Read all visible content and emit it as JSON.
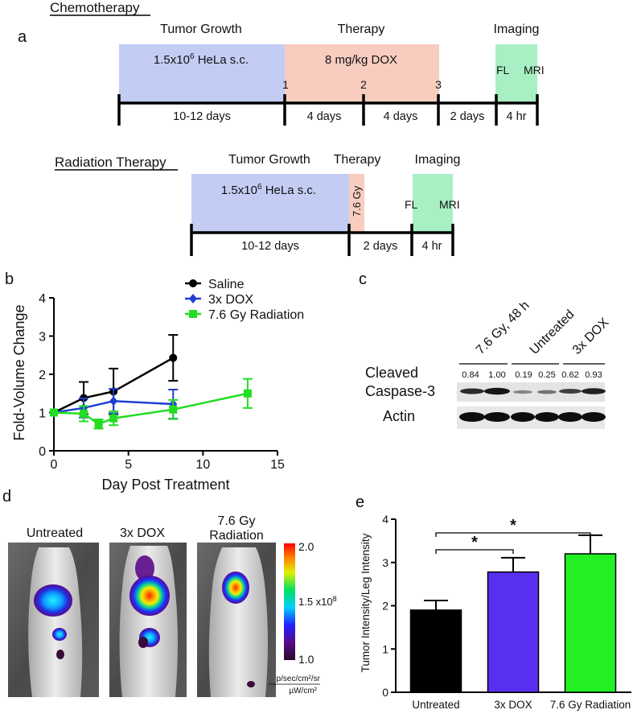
{
  "panel_labels": {
    "a": "a",
    "b": "b",
    "c": "c",
    "d": "d",
    "e": "e"
  },
  "timeline_chemo": {
    "title": "Chemotherapy",
    "phases": {
      "growth": "Tumor Growth",
      "therapy": "Therapy",
      "imaging": "Imaging"
    },
    "cells": "1.5x10",
    "cells_exp": "6",
    "cells_suffix": " HeLa s.c.",
    "dose": "8 mg/kg DOX",
    "dose_markers": [
      "1",
      "2",
      "3"
    ],
    "fl": "FL",
    "mri": "MRI",
    "durations": [
      "10-12 days",
      "4 days",
      "4 days",
      "2 days",
      "4 hr"
    ],
    "colors": {
      "growth": "#c3cdf4",
      "therapy": "#f8cdc0",
      "imaging": "#a8f0c4"
    }
  },
  "timeline_rad": {
    "title": "Radiation Therapy",
    "phases": {
      "growth": "Tumor Growth",
      "therapy": "Therapy",
      "imaging": "Imaging"
    },
    "cells": "1.5x10",
    "cells_exp": "6",
    "cells_suffix": " HeLa s.c.",
    "dose": "7.6 Gy",
    "fl": "FL",
    "mri": "MRI",
    "durations": [
      "10-12 days",
      "2 days",
      "4 hr"
    ]
  },
  "chart_data": [
    {
      "type": "line",
      "panel": "b",
      "xlabel": "Day Post Treatment",
      "ylabel": "Fold-Volume Change",
      "xlim": [
        0,
        15
      ],
      "ylim": [
        0,
        4
      ],
      "xticks": [
        "0",
        "5",
        "10",
        "15"
      ],
      "yticks": [
        "0",
        "1",
        "2",
        "3",
        "4"
      ],
      "legend_position": "top-right",
      "series": [
        {
          "name": "Saline",
          "color": "#000000",
          "marker": "circle",
          "x": [
            0,
            2,
            4,
            8
          ],
          "y": [
            1.0,
            1.38,
            1.55,
            2.43
          ],
          "err": [
            0.0,
            0.42,
            0.6,
            0.6
          ]
        },
        {
          "name": "3x DOX",
          "color": "#1f3fd0",
          "marker": "diamond",
          "x": [
            0,
            2,
            4,
            8
          ],
          "y": [
            1.0,
            1.12,
            1.3,
            1.22
          ],
          "err": [
            0.0,
            0.25,
            0.32,
            0.38
          ]
        },
        {
          "name": "7.6 Gy  Radiation",
          "color": "#22dd22",
          "marker": "square",
          "x": [
            0,
            2,
            3,
            4,
            8,
            13
          ],
          "y": [
            1.0,
            0.97,
            0.7,
            0.85,
            1.08,
            1.5
          ],
          "err": [
            0.0,
            0.2,
            0.12,
            0.18,
            0.25,
            0.38
          ]
        }
      ]
    },
    {
      "type": "bar",
      "panel": "e",
      "ylabel": "Tumor Intensity/Leg Intensity",
      "categories": [
        "Untreated",
        "3x DOX",
        "7.6 Gy Radiation"
      ],
      "values": [
        1.9,
        2.78,
        3.2
      ],
      "errors": [
        0.22,
        0.33,
        0.43
      ],
      "colors": [
        "#000000",
        "#5a30f0",
        "#22f022"
      ],
      "ylim": [
        0,
        4
      ],
      "yticks": [
        "0",
        "1",
        "2",
        "3",
        "4"
      ],
      "significance": [
        {
          "from": 0,
          "to": 1,
          "label": "*"
        },
        {
          "from": 0,
          "to": 2,
          "label": "*"
        }
      ]
    }
  ],
  "western": {
    "lanes": [
      "7.6 Gy, 48 h",
      "Untreated",
      "3x DOX"
    ],
    "quant": [
      "0.84",
      "1.00",
      "0.19",
      "0.25",
      "0.62",
      "0.93"
    ],
    "row_labels": [
      "Cleaved",
      "Caspase-3",
      "Actin"
    ]
  },
  "imaging": {
    "labels": [
      "Untreated",
      "3x DOX",
      "7.6 Gy",
      "Radiation"
    ],
    "colorbar_max": "2.0",
    "colorbar_mid": "1.5 x10",
    "colorbar_mid_exp": "8",
    "colorbar_min": "1.0",
    "units_top": "p/sec/cm²/sr",
    "units_bottom": "µW/cm²"
  }
}
